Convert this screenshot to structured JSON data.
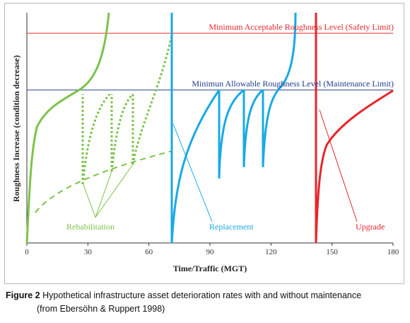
{
  "chart_data": {
    "type": "line",
    "xlabel": "Time/Traffic (MGT)",
    "ylabel": "Roughness Increase (condition decrease)",
    "xlim": [
      0,
      180
    ],
    "xticks": [
      "0",
      "30",
      "60",
      "90",
      "120",
      "150",
      "180"
    ],
    "reference_lines": [
      {
        "label": "Minimum Acceptable Roughness Level (Safety Limit)",
        "color": "#e8262a"
      },
      {
        "label": "Minimun Allowable Roughness Level (Maintenance Limit)",
        "color": "#1f3c8c"
      }
    ],
    "annotations": [
      {
        "label": "Rehabilitation",
        "color": "#7dc24b"
      },
      {
        "label": "Replacement",
        "color": "#19a9e5"
      },
      {
        "label": "Upgrade",
        "color": "#e8262a"
      }
    ],
    "colors": {
      "green": "#7dc24b",
      "blue": "#19a9e5",
      "red": "#e8262a",
      "navy": "#1f3c8c"
    }
  },
  "caption": {
    "figure_label": "Figure 2",
    "line1": "Hypothetical infrastructure asset deterioration rates with and without maintenance",
    "line2": "(from Ebersöhn & Ruppert 1998)"
  }
}
